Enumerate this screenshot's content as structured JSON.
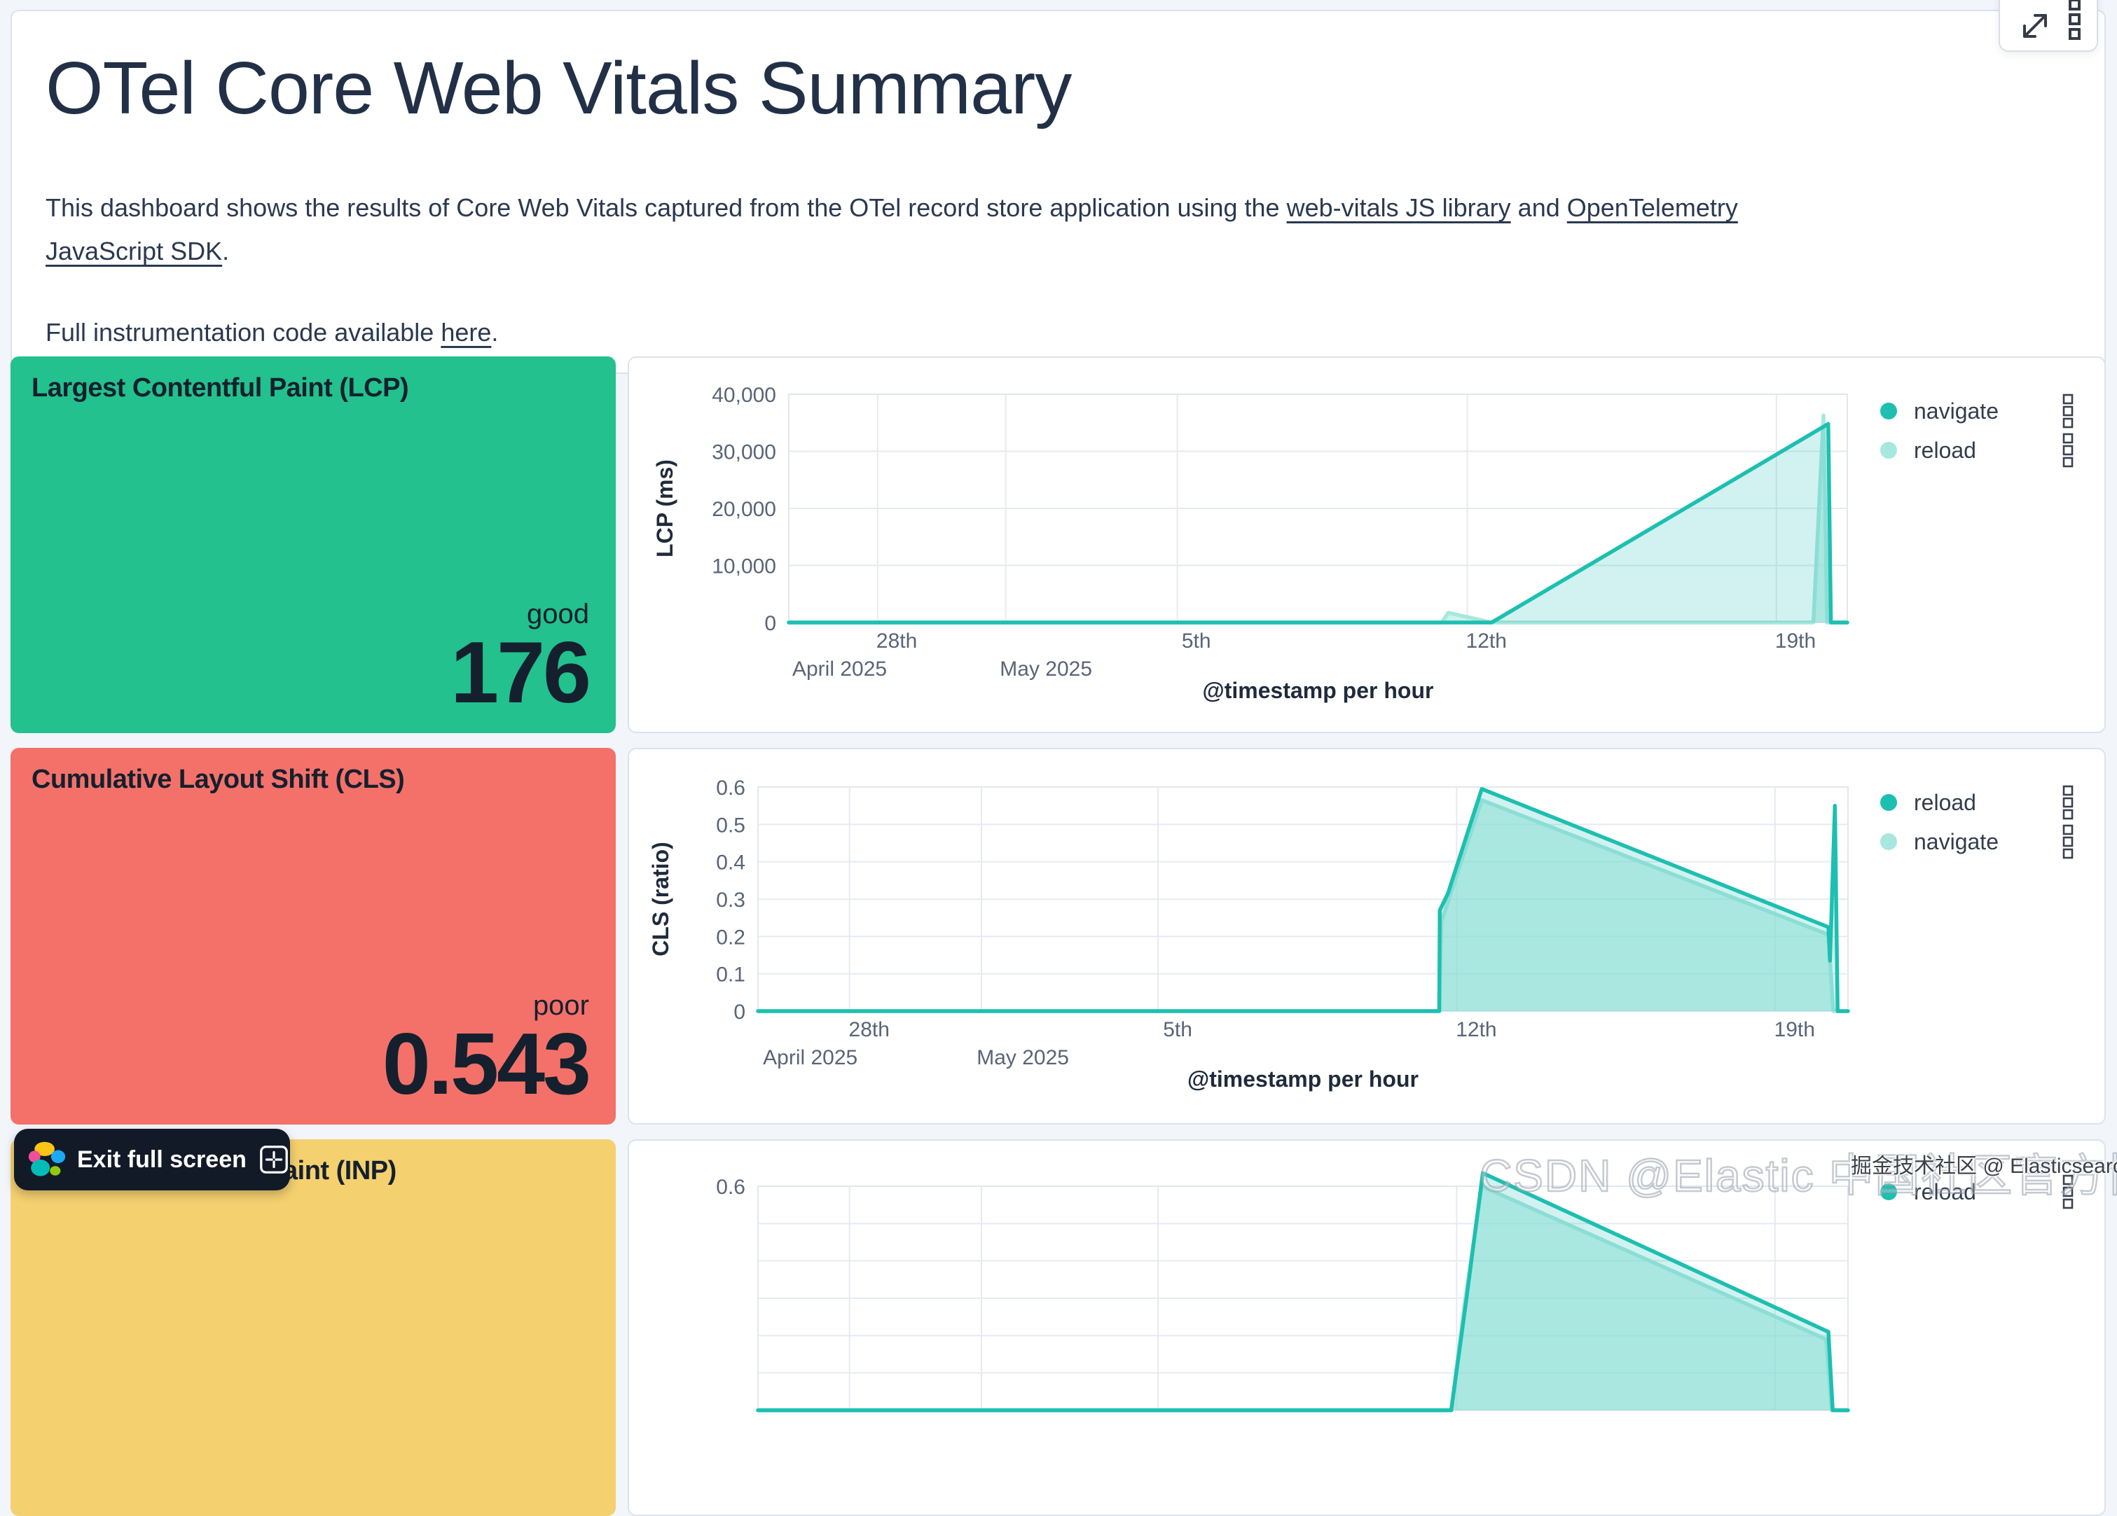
{
  "header": {
    "title": "OTel Core Web Vitals Summary",
    "p1_lines": [
      [
        {
          "t": "This dashboard shows the results of Core Web Vitals captured from the OTel record store application using the ",
          "link": false
        },
        {
          "t": "web-vitals JS library",
          "link": true
        },
        {
          "t": " and ",
          "link": false
        },
        {
          "t": "OpenTelemetry",
          "link": true
        }
      ],
      [
        {
          "t": "JavaScript SDK",
          "link": true
        },
        {
          "t": ".",
          "link": false
        }
      ]
    ],
    "p2_segments": [
      {
        "t": "Full instrumentation code available ",
        "link": false
      },
      {
        "t": "here",
        "link": true
      },
      {
        "t": ".",
        "link": false
      }
    ]
  },
  "toolbar": {
    "icons": [
      "maximize-icon",
      "panel-options-icon"
    ]
  },
  "cards": [
    {
      "title": "Largest Contentful Paint (LCP)",
      "status": "good",
      "value": "176",
      "bg": "#23C18D"
    },
    {
      "title": "Cumulative Layout Shift (CLS)",
      "status": "poor",
      "value": "0.543",
      "bg": "#F4716A"
    },
    {
      "title": "Interaction to Next Paint (INP)",
      "bg": "#F5D06F"
    }
  ],
  "charts": [
    {
      "y_axis_title": "LCP (ms)",
      "x_axis_title": "@timestamp per hour",
      "type": "area",
      "ylim": [
        0,
        40000
      ],
      "y_ticks": [
        "40,000",
        "30,000",
        "20,000",
        "10,000",
        "0"
      ],
      "x_day_ticks": [
        {
          "label": "28th",
          "pos": 0.102
        },
        {
          "label": "5th",
          "pos": 0.385
        },
        {
          "label": "12th",
          "pos": 0.659
        },
        {
          "label": "19th",
          "pos": 0.951
        }
      ],
      "x_month_ticks": [
        {
          "label": "April 2025",
          "pos": 0.048
        },
        {
          "label": "May 2025",
          "pos": 0.243
        }
      ],
      "gridline_pos": [
        0.084,
        0.205,
        0.367,
        0.641,
        0.933
      ],
      "series": [
        {
          "name": "reload",
          "tone": "light",
          "points": [
            [
              0,
              0
            ],
            [
              0.617,
              0
            ],
            [
              0.623,
              1700
            ],
            [
              0.64,
              1000
            ],
            [
              0.664,
              0
            ],
            [
              0.968,
              0
            ],
            [
              0.9775,
              36300
            ],
            [
              0.981,
              0
            ],
            [
              1,
              0
            ]
          ]
        },
        {
          "name": "navigate",
          "tone": "teal",
          "points": [
            [
              0,
              0
            ],
            [
              0.664,
              0
            ],
            [
              0.982,
              34800
            ],
            [
              0.9845,
              0
            ],
            [
              1,
              0
            ]
          ]
        }
      ],
      "legend": [
        {
          "label": "navigate",
          "tone": "teal"
        },
        {
          "label": "reload",
          "tone": "light"
        }
      ]
    },
    {
      "y_axis_title": "CLS (ratio)",
      "x_axis_title": "@timestamp per hour",
      "type": "area",
      "ylim": [
        0,
        0.6
      ],
      "y_ticks": [
        "0.6",
        "0.5",
        "0.4",
        "0.3",
        "0.2",
        "0.1",
        "0"
      ],
      "x_day_ticks": [
        {
          "label": "28th",
          "pos": 0.102
        },
        {
          "label": "5th",
          "pos": 0.385
        },
        {
          "label": "12th",
          "pos": 0.659
        },
        {
          "label": "19th",
          "pos": 0.951
        }
      ],
      "x_month_ticks": [
        {
          "label": "April 2025",
          "pos": 0.048
        },
        {
          "label": "May 2025",
          "pos": 0.243
        }
      ],
      "gridline_pos": [
        0.084,
        0.205,
        0.367,
        0.641,
        0.933
      ],
      "series": [
        {
          "name": "navigate",
          "tone": "light",
          "points": [
            [
              0,
              0
            ],
            [
              0.625,
              0
            ],
            [
              0.627,
              0.24
            ],
            [
              0.664,
              0.565
            ],
            [
              0.982,
              0.205
            ],
            [
              0.9865,
              0
            ],
            [
              1,
              0
            ]
          ]
        },
        {
          "name": "reload",
          "tone": "teal",
          "points": [
            [
              0,
              0
            ],
            [
              0.625,
              0
            ],
            [
              0.6255,
              0.27
            ],
            [
              0.633,
              0.315
            ],
            [
              0.664,
              0.595
            ],
            [
              0.982,
              0.225
            ],
            [
              0.9835,
              0.135
            ],
            [
              0.988,
              0.55
            ],
            [
              0.9905,
              0
            ],
            [
              1,
              0
            ]
          ]
        }
      ],
      "legend": [
        {
          "label": "reload",
          "tone": "teal"
        },
        {
          "label": "navigate",
          "tone": "light"
        }
      ]
    },
    {
      "y_axis_title": "",
      "x_axis_title": "",
      "type": "area",
      "ylim": [
        0,
        0.6
      ],
      "y_ticks": [
        "0.6"
      ],
      "x_day_ticks": [],
      "x_month_ticks": [],
      "gridline_pos": [
        0.084,
        0.205,
        0.367,
        0.641,
        0.933
      ],
      "series": [
        {
          "name": "navigate",
          "tone": "light",
          "points": [
            [
              0,
              0
            ],
            [
              0.636,
              0
            ],
            [
              0.648,
              0.28
            ],
            [
              0.664,
              0.6
            ],
            [
              0.98,
              0.19
            ],
            [
              0.985,
              0
            ],
            [
              1,
              0
            ]
          ]
        },
        {
          "name": "reload",
          "tone": "teal",
          "points": [
            [
              0,
              0
            ],
            [
              0.636,
              0
            ],
            [
              0.65,
              0.3
            ],
            [
              0.665,
              0.635
            ],
            [
              0.982,
              0.21
            ],
            [
              0.986,
              0
            ],
            [
              1,
              0
            ]
          ]
        }
      ],
      "legend": [
        {
          "label": "reload",
          "tone": "teal"
        }
      ]
    }
  ],
  "exit_button": {
    "label": "Exit full screen"
  },
  "watermarks": {
    "large": "CSDN @Elastic 中国社区官方博客",
    "small": "掘金技术社区 @ Elasticsearch"
  },
  "colors": {
    "teal": "#1DBFB0",
    "teal_fill": "rgba(23,191,179,0.20)",
    "light": "#A8E7DE",
    "light_fill": "rgba(168,231,222,0.55)",
    "grid": "#E6EAF1",
    "plot_border": "#E2E7EE",
    "icon": "#39414E",
    "good_green": "#23C18D",
    "poor_red": "#F4716A",
    "warn_yellow": "#F5D06F"
  }
}
